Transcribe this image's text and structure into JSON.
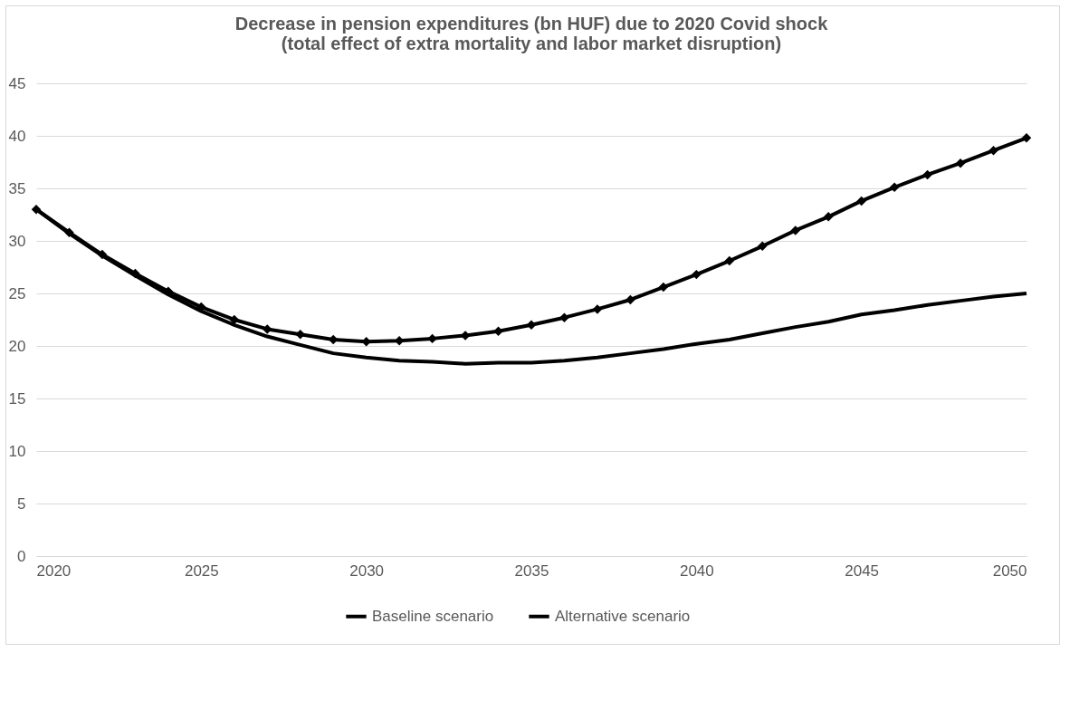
{
  "chart_data": {
    "type": "line",
    "title": "Decrease in pension expenditures (bn HUF) due to 2020 Covid shock\n(total effect of extra mortality and labor market disruption)",
    "x": [
      2020,
      2021,
      2022,
      2023,
      2024,
      2025,
      2026,
      2027,
      2028,
      2029,
      2030,
      2031,
      2032,
      2033,
      2034,
      2035,
      2036,
      2037,
      2038,
      2039,
      2040,
      2041,
      2042,
      2043,
      2044,
      2045,
      2046,
      2047,
      2048,
      2049,
      2050
    ],
    "series": [
      {
        "name": "Baseline scenario",
        "color": "#000000",
        "values": [
          33,
          30.7,
          28.6,
          26.7,
          24.9,
          23.3,
          22.0,
          20.9,
          20.1,
          19.3,
          18.9,
          18.6,
          18.5,
          18.3,
          18.4,
          18.4,
          18.6,
          18.9,
          19.3,
          19.7,
          20.2,
          20.6,
          21.2,
          21.8,
          22.3,
          23.0,
          23.4,
          23.9,
          24.3,
          24.7,
          25.0
        ]
      },
      {
        "name": "Alternative scenario",
        "color": "#000000",
        "marker": "diamond",
        "values": [
          33,
          30.8,
          28.7,
          26.9,
          25.2,
          23.7,
          22.5,
          21.6,
          21.1,
          20.6,
          20.4,
          20.5,
          20.7,
          21.0,
          21.4,
          22.0,
          22.7,
          23.5,
          24.4,
          25.6,
          26.8,
          28.1,
          29.5,
          31.0,
          32.3,
          33.8,
          35.1,
          36.3,
          37.4,
          38.6,
          39.8
        ]
      }
    ],
    "xlim": [
      2020,
      2050
    ],
    "xticks": [
      2020,
      2025,
      2030,
      2035,
      2040,
      2045,
      2050
    ],
    "ylim": [
      0,
      45
    ],
    "yticks": [
      0,
      5,
      10,
      15,
      20,
      25,
      30,
      35,
      40,
      45
    ],
    "grid": "y",
    "legend": "bottom",
    "line_style": "solid"
  }
}
